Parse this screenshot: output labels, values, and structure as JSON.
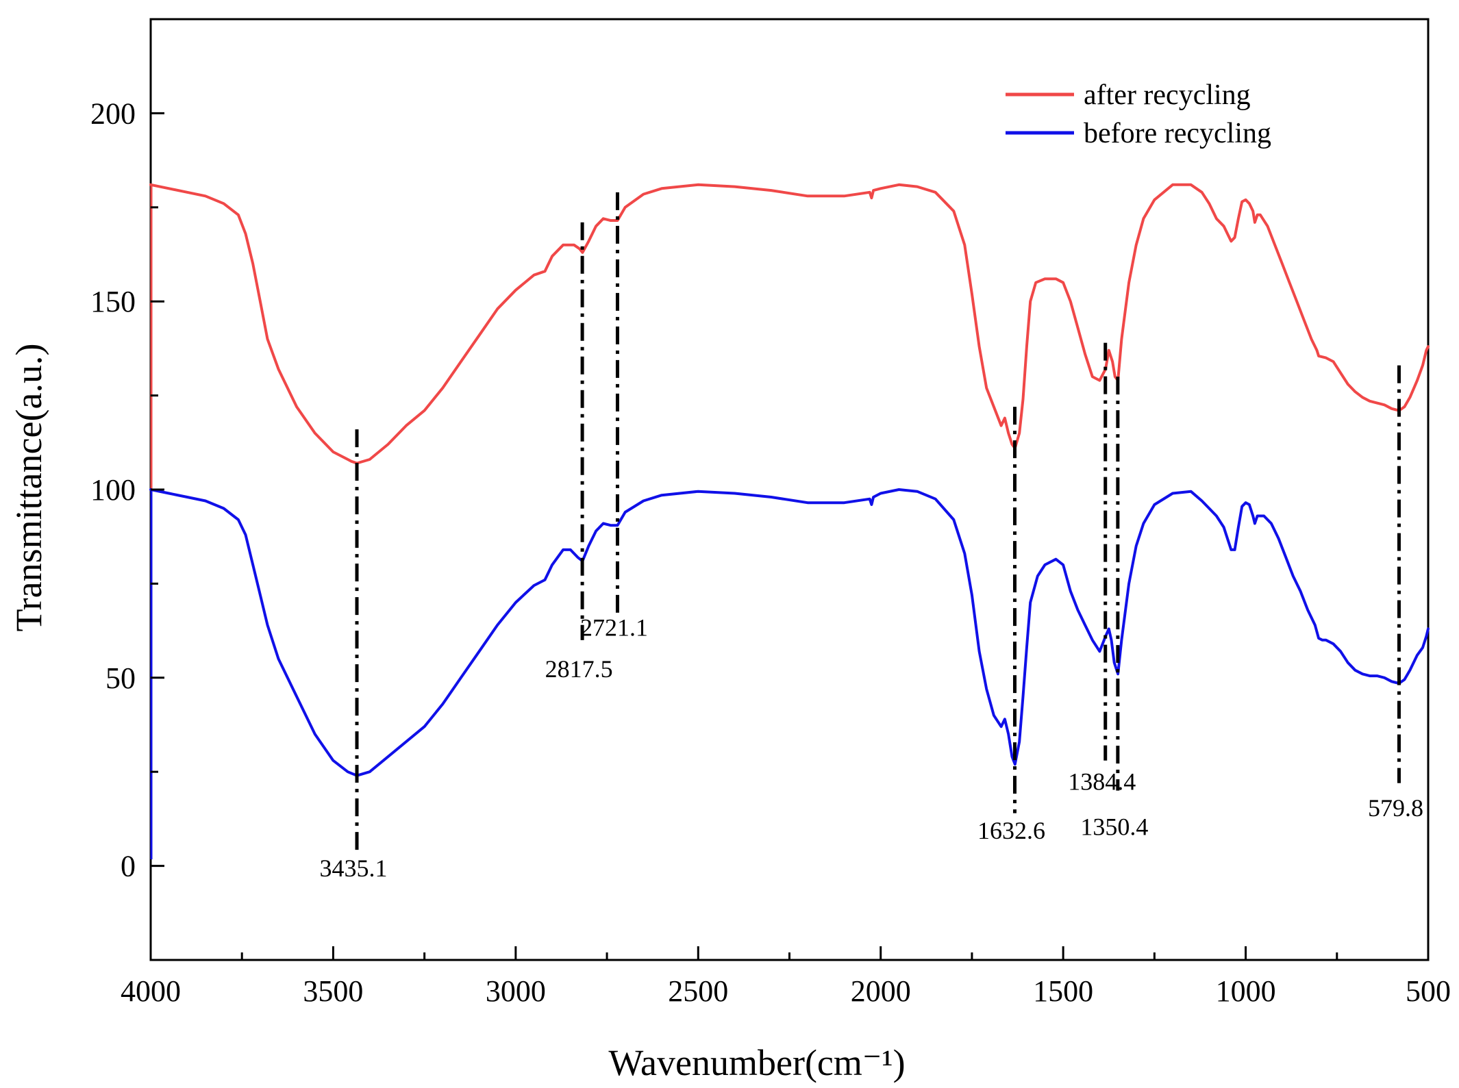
{
  "chart_data": {
    "type": "line",
    "title": "",
    "xlabel": "Wavenumber(cm⁻¹)",
    "ylabel": "Transmittance(a.u.)",
    "xlim": [
      4000,
      500
    ],
    "ylim": [
      -25,
      225
    ],
    "x_major_ticks": [
      4000,
      3500,
      3000,
      2500,
      2000,
      1500,
      1000,
      500
    ],
    "x_tick_labels": [
      "4000",
      "3500",
      "3000",
      "2500",
      "2000",
      "1500",
      "1000",
      "500"
    ],
    "y_major_ticks": [
      0,
      50,
      100,
      150,
      200
    ],
    "y_tick_labels": [
      "0",
      "50",
      "100",
      "150",
      "200"
    ],
    "legend": {
      "position": "top-right",
      "entries": [
        "after recycling",
        "before recycling"
      ]
    },
    "colors": {
      "after recycling": "#f04848",
      "before recycling": "#1010e8",
      "axes": "#000000"
    },
    "series": [
      {
        "name": "after recycling",
        "color": "#f04848",
        "points": [
          [
            4000,
            181
          ],
          [
            3950,
            180
          ],
          [
            3900,
            179
          ],
          [
            3850,
            178
          ],
          [
            3800,
            176
          ],
          [
            3760,
            173
          ],
          [
            3740,
            168
          ],
          [
            3720,
            160
          ],
          [
            3700,
            150
          ],
          [
            3680,
            140
          ],
          [
            3650,
            132
          ],
          [
            3600,
            122
          ],
          [
            3550,
            115
          ],
          [
            3500,
            110
          ],
          [
            3450,
            107.5
          ],
          [
            3435,
            107
          ],
          [
            3400,
            108
          ],
          [
            3350,
            112
          ],
          [
            3300,
            117
          ],
          [
            3250,
            121
          ],
          [
            3200,
            127
          ],
          [
            3150,
            134
          ],
          [
            3100,
            141
          ],
          [
            3050,
            148
          ],
          [
            3000,
            153
          ],
          [
            2950,
            157
          ],
          [
            2920,
            158
          ],
          [
            2900,
            162
          ],
          [
            2870,
            165
          ],
          [
            2840,
            165
          ],
          [
            2825,
            164
          ],
          [
            2817,
            163
          ],
          [
            2800,
            166
          ],
          [
            2780,
            170
          ],
          [
            2760,
            172
          ],
          [
            2740,
            171.5
          ],
          [
            2721,
            171.5
          ],
          [
            2700,
            175
          ],
          [
            2650,
            178.5
          ],
          [
            2600,
            180
          ],
          [
            2500,
            181
          ],
          [
            2400,
            180.5
          ],
          [
            2300,
            179.5
          ],
          [
            2200,
            178
          ],
          [
            2100,
            178
          ],
          [
            2030,
            179
          ],
          [
            2025,
            177.5
          ],
          [
            2020,
            179.5
          ],
          [
            2000,
            180
          ],
          [
            1950,
            181
          ],
          [
            1900,
            180.5
          ],
          [
            1850,
            179
          ],
          [
            1800,
            174
          ],
          [
            1770,
            165
          ],
          [
            1750,
            152
          ],
          [
            1730,
            138
          ],
          [
            1710,
            127
          ],
          [
            1690,
            122
          ],
          [
            1670,
            117
          ],
          [
            1660,
            119
          ],
          [
            1650,
            115
          ],
          [
            1640,
            112
          ],
          [
            1632,
            111
          ],
          [
            1620,
            115
          ],
          [
            1610,
            124
          ],
          [
            1600,
            138
          ],
          [
            1590,
            150
          ],
          [
            1575,
            155
          ],
          [
            1550,
            156
          ],
          [
            1520,
            156
          ],
          [
            1500,
            155
          ],
          [
            1480,
            150
          ],
          [
            1460,
            143
          ],
          [
            1440,
            136
          ],
          [
            1420,
            130
          ],
          [
            1400,
            129
          ],
          [
            1384,
            132
          ],
          [
            1375,
            137
          ],
          [
            1365,
            134
          ],
          [
            1358,
            130
          ],
          [
            1350,
            129
          ],
          [
            1340,
            140
          ],
          [
            1320,
            155
          ],
          [
            1300,
            165
          ],
          [
            1280,
            172
          ],
          [
            1250,
            177
          ],
          [
            1200,
            181
          ],
          [
            1150,
            181
          ],
          [
            1120,
            179
          ],
          [
            1100,
            176
          ],
          [
            1080,
            172
          ],
          [
            1060,
            170
          ],
          [
            1050,
            168
          ],
          [
            1040,
            166
          ],
          [
            1030,
            167
          ],
          [
            1020,
            172
          ],
          [
            1010,
            176.5
          ],
          [
            1000,
            177
          ],
          [
            990,
            176
          ],
          [
            980,
            174
          ],
          [
            975,
            171
          ],
          [
            968,
            173
          ],
          [
            960,
            173
          ],
          [
            940,
            170
          ],
          [
            920,
            165
          ],
          [
            900,
            160
          ],
          [
            880,
            155
          ],
          [
            860,
            150
          ],
          [
            840,
            145
          ],
          [
            820,
            140
          ],
          [
            805,
            137
          ],
          [
            800,
            135.5
          ],
          [
            780,
            135
          ],
          [
            760,
            134
          ],
          [
            740,
            131
          ],
          [
            720,
            128
          ],
          [
            700,
            126
          ],
          [
            680,
            124.5
          ],
          [
            660,
            123.5
          ],
          [
            640,
            123
          ],
          [
            620,
            122.5
          ],
          [
            600,
            121.5
          ],
          [
            580,
            121
          ],
          [
            565,
            122
          ],
          [
            550,
            124.5
          ],
          [
            530,
            129
          ],
          [
            515,
            133
          ],
          [
            505,
            137
          ],
          [
            500,
            138
          ]
        ]
      },
      {
        "name": "before recycling",
        "color": "#1010e8",
        "points": [
          [
            4000,
            100
          ],
          [
            3950,
            99
          ],
          [
            3900,
            98
          ],
          [
            3850,
            97
          ],
          [
            3800,
            95
          ],
          [
            3760,
            92
          ],
          [
            3740,
            88
          ],
          [
            3720,
            80
          ],
          [
            3700,
            72
          ],
          [
            3680,
            64
          ],
          [
            3650,
            55
          ],
          [
            3600,
            45
          ],
          [
            3550,
            35
          ],
          [
            3500,
            28
          ],
          [
            3460,
            25
          ],
          [
            3435,
            24
          ],
          [
            3400,
            25
          ],
          [
            3350,
            29
          ],
          [
            3300,
            33
          ],
          [
            3250,
            37
          ],
          [
            3200,
            43
          ],
          [
            3150,
            50
          ],
          [
            3100,
            57
          ],
          [
            3050,
            64
          ],
          [
            3000,
            70
          ],
          [
            2950,
            74.5
          ],
          [
            2920,
            76
          ],
          [
            2900,
            80
          ],
          [
            2870,
            84
          ],
          [
            2850,
            84
          ],
          [
            2830,
            82
          ],
          [
            2817,
            81
          ],
          [
            2800,
            85
          ],
          [
            2780,
            89
          ],
          [
            2760,
            91
          ],
          [
            2740,
            90.5
          ],
          [
            2721,
            90.5
          ],
          [
            2700,
            94
          ],
          [
            2650,
            97
          ],
          [
            2600,
            98.5
          ],
          [
            2500,
            99.5
          ],
          [
            2400,
            99
          ],
          [
            2300,
            98
          ],
          [
            2200,
            96.5
          ],
          [
            2100,
            96.5
          ],
          [
            2030,
            97.5
          ],
          [
            2025,
            96
          ],
          [
            2020,
            98
          ],
          [
            2000,
            99
          ],
          [
            1950,
            100
          ],
          [
            1900,
            99.5
          ],
          [
            1850,
            97.5
          ],
          [
            1800,
            92
          ],
          [
            1770,
            83
          ],
          [
            1750,
            72
          ],
          [
            1730,
            57
          ],
          [
            1710,
            47
          ],
          [
            1690,
            40
          ],
          [
            1670,
            37
          ],
          [
            1660,
            39
          ],
          [
            1650,
            35
          ],
          [
            1640,
            29
          ],
          [
            1632,
            27
          ],
          [
            1620,
            33
          ],
          [
            1610,
            45
          ],
          [
            1600,
            58
          ],
          [
            1590,
            70
          ],
          [
            1570,
            77
          ],
          [
            1550,
            80
          ],
          [
            1520,
            81.5
          ],
          [
            1500,
            80
          ],
          [
            1480,
            73
          ],
          [
            1460,
            68
          ],
          [
            1440,
            64
          ],
          [
            1420,
            60
          ],
          [
            1400,
            57
          ],
          [
            1384,
            61
          ],
          [
            1375,
            63
          ],
          [
            1368,
            60
          ],
          [
            1360,
            54
          ],
          [
            1350,
            51
          ],
          [
            1340,
            60
          ],
          [
            1320,
            75
          ],
          [
            1300,
            85
          ],
          [
            1280,
            91
          ],
          [
            1250,
            96
          ],
          [
            1200,
            99
          ],
          [
            1150,
            99.5
          ],
          [
            1120,
            97
          ],
          [
            1100,
            95
          ],
          [
            1080,
            93
          ],
          [
            1060,
            90
          ],
          [
            1050,
            87
          ],
          [
            1040,
            84
          ],
          [
            1030,
            84
          ],
          [
            1020,
            90
          ],
          [
            1010,
            95.5
          ],
          [
            1000,
            96.5
          ],
          [
            990,
            96
          ],
          [
            980,
            93
          ],
          [
            975,
            91
          ],
          [
            968,
            93
          ],
          [
            950,
            93
          ],
          [
            930,
            91
          ],
          [
            910,
            87
          ],
          [
            890,
            82
          ],
          [
            870,
            77
          ],
          [
            850,
            73
          ],
          [
            830,
            68
          ],
          [
            810,
            64
          ],
          [
            800,
            60.5
          ],
          [
            790,
            60
          ],
          [
            780,
            60
          ],
          [
            760,
            59
          ],
          [
            740,
            57
          ],
          [
            720,
            54
          ],
          [
            700,
            52
          ],
          [
            680,
            51
          ],
          [
            660,
            50.5
          ],
          [
            640,
            50.5
          ],
          [
            620,
            50
          ],
          [
            600,
            49
          ],
          [
            580,
            48.5
          ],
          [
            565,
            49.5
          ],
          [
            550,
            52
          ],
          [
            530,
            56
          ],
          [
            515,
            58
          ],
          [
            505,
            61
          ],
          [
            500,
            63
          ]
        ]
      }
    ],
    "annotations": [
      {
        "label": "3435.1",
        "x": 3435.1,
        "line_y": [
          4,
          116
        ],
        "label_y": -1
      },
      {
        "label": "2817.5",
        "x": 2817.5,
        "line_y": [
          60,
          171
        ],
        "label_y": 52
      },
      {
        "label": "2721.1",
        "x": 2721.1,
        "line_y": [
          67,
          179
        ],
        "label_y": 63
      },
      {
        "label": "1632.6",
        "x": 1632.6,
        "line_y": [
          14,
          122
        ],
        "label_y": 9
      },
      {
        "label": "1384.4",
        "x": 1384.4,
        "line_y": [
          28,
          139
        ],
        "label_y": 22
      },
      {
        "label": "1350.4",
        "x": 1350.4,
        "line_y": [
          20,
          130
        ],
        "label_y": 10
      },
      {
        "label": "579.8",
        "x": 579.8,
        "line_y": [
          22,
          133
        ],
        "label_y": 15
      }
    ]
  }
}
